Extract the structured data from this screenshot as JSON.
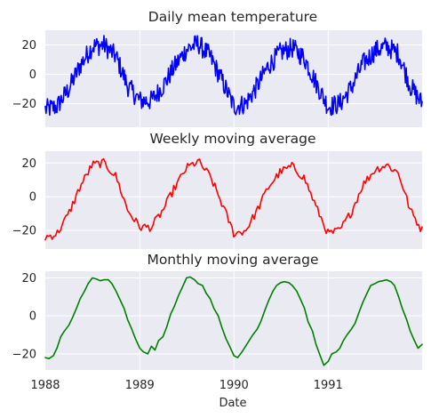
{
  "chart_data": [
    {
      "type": "line",
      "title": "Daily mean temperature",
      "xlabel": "",
      "ylabel": "",
      "xlim": [
        "1988-01-01",
        "1991-12-31"
      ],
      "ylim": [
        -36,
        30
      ],
      "yticks": [
        -20,
        0,
        20
      ],
      "grid": true,
      "series": [
        {
          "color": "#0000ff",
          "description": "daily noisy seasonal cycle",
          "x": [
            "1988-01-01",
            "1988-02-15",
            "1988-04-01",
            "1988-05-15",
            "1988-07-01",
            "1988-08-15",
            "1988-10-01",
            "1988-11-15",
            "1989-01-01",
            "1989-02-15",
            "1989-04-01",
            "1989-05-15",
            "1989-07-01",
            "1989-08-15",
            "1989-10-01",
            "1989-11-15",
            "1990-01-01",
            "1990-02-15",
            "1990-04-01",
            "1990-05-15",
            "1990-07-01",
            "1990-08-15",
            "1990-10-01",
            "1990-11-15",
            "1991-01-01",
            "1991-02-15",
            "1991-04-01",
            "1991-05-15",
            "1991-07-01",
            "1991-08-15",
            "1991-10-01",
            "1991-11-15",
            "1991-12-31"
          ],
          "y": [
            -24,
            -22,
            -10,
            6,
            19,
            20,
            12,
            -8,
            -18,
            -18,
            -8,
            5,
            17,
            21,
            12,
            -4,
            -22,
            -20,
            -8,
            6,
            15,
            18,
            11,
            -6,
            -22,
            -20,
            -9,
            7,
            16,
            19,
            14,
            -8,
            -20
          ]
        }
      ]
    },
    {
      "type": "line",
      "title": "Weekly moving average",
      "xlabel": "",
      "ylabel": "",
      "xlim": [
        "1988-01-01",
        "1991-12-31"
      ],
      "ylim": [
        -31,
        27
      ],
      "yticks": [
        -20,
        0,
        20
      ],
      "grid": true,
      "series": [
        {
          "color": "#ff0000",
          "description": "7-day rolling mean",
          "x": [
            "1988-01-01",
            "1988-02-15",
            "1988-04-01",
            "1988-05-15",
            "1988-07-01",
            "1988-08-15",
            "1988-10-01",
            "1988-11-15",
            "1989-01-01",
            "1989-02-15",
            "1989-04-01",
            "1989-05-15",
            "1989-07-01",
            "1989-08-15",
            "1989-10-01",
            "1989-11-15",
            "1990-01-01",
            "1990-02-15",
            "1990-04-01",
            "1990-05-15",
            "1990-07-01",
            "1990-08-15",
            "1990-10-01",
            "1990-11-15",
            "1991-01-01",
            "1991-02-15",
            "1991-04-01",
            "1991-05-15",
            "1991-07-01",
            "1991-08-15",
            "1991-10-01",
            "1991-11-15",
            "1991-12-31"
          ],
          "y": [
            -24,
            -22,
            -10,
            6,
            19,
            20,
            12,
            -8,
            -18,
            -18,
            -8,
            5,
            17,
            21,
            12,
            -4,
            -22,
            -20,
            -8,
            6,
            15,
            18,
            11,
            -6,
            -22,
            -20,
            -9,
            7,
            16,
            19,
            14,
            -8,
            -20
          ]
        }
      ]
    },
    {
      "type": "line",
      "title": "Monthly moving average",
      "xlabel": "Date",
      "ylabel": "",
      "xlim": [
        "1988-01-01",
        "1991-12-31"
      ],
      "ylim": [
        -28.5,
        23.5
      ],
      "yticks": [
        -20,
        0,
        20
      ],
      "xticks": [
        "1988",
        "1989",
        "1990",
        "1991"
      ],
      "grid": true,
      "series": [
        {
          "color": "#008000",
          "description": "30-day rolling mean",
          "x": [
            "1988-01-01",
            "1988-01-15",
            "1988-02-01",
            "1988-02-15",
            "1988-03-01",
            "1988-03-15",
            "1988-04-01",
            "1988-04-15",
            "1988-05-01",
            "1988-05-15",
            "1988-06-01",
            "1988-06-15",
            "1988-07-01",
            "1988-07-15",
            "1988-08-01",
            "1988-08-15",
            "1988-09-01",
            "1988-09-15",
            "1988-10-01",
            "1988-10-15",
            "1988-11-01",
            "1988-11-15",
            "1988-12-01",
            "1988-12-15",
            "1989-01-01",
            "1989-01-15",
            "1989-02-01",
            "1989-02-15",
            "1989-03-01",
            "1989-03-15",
            "1989-04-01",
            "1989-04-15",
            "1989-05-01",
            "1989-05-15",
            "1989-06-01",
            "1989-06-15",
            "1989-07-01",
            "1989-07-15",
            "1989-08-01",
            "1989-08-15",
            "1989-09-01",
            "1989-09-15",
            "1989-10-01",
            "1989-10-15",
            "1989-11-01",
            "1989-11-15",
            "1989-12-01",
            "1989-12-15",
            "1990-01-01",
            "1990-01-15",
            "1990-02-01",
            "1990-02-15",
            "1990-03-01",
            "1990-03-15",
            "1990-04-01",
            "1990-04-15",
            "1990-05-01",
            "1990-05-15",
            "1990-06-01",
            "1990-06-15",
            "1990-07-01",
            "1990-07-15",
            "1990-08-01",
            "1990-08-15",
            "1990-09-01",
            "1990-09-15",
            "1990-10-01",
            "1990-10-15",
            "1990-11-01",
            "1990-11-15",
            "1990-12-01",
            "1990-12-15",
            "1991-01-01",
            "1991-01-15",
            "1991-02-01",
            "1991-02-15",
            "1991-03-01",
            "1991-03-15",
            "1991-04-01",
            "1991-04-15",
            "1991-05-01",
            "1991-05-15",
            "1991-06-01",
            "1991-06-15",
            "1991-07-01",
            "1991-07-15",
            "1991-08-01",
            "1991-08-15",
            "1991-09-01",
            "1991-09-15",
            "1991-10-01",
            "1991-10-15",
            "1991-11-01",
            "1991-11-15",
            "1991-12-01",
            "1991-12-15",
            "1991-12-31"
          ],
          "y": [
            -22,
            -22.5,
            -21,
            -17,
            -11,
            -8,
            -5,
            -1,
            4,
            9,
            13,
            17,
            20,
            19.5,
            18.5,
            19,
            19,
            17,
            13,
            9,
            4,
            -2,
            -7,
            -12,
            -17,
            -19,
            -20,
            -16,
            -18,
            -13,
            -11,
            -6,
            1,
            5,
            11,
            15,
            20,
            20.5,
            19,
            17,
            16,
            12,
            9,
            4,
            0,
            -6,
            -12,
            -16,
            -21,
            -22,
            -19,
            -16,
            -13,
            -10,
            -7,
            -3,
            3,
            8,
            13,
            16,
            17.5,
            18,
            17.5,
            16,
            13,
            9,
            4,
            -3,
            -8,
            -15,
            -21,
            -26,
            -24,
            -20,
            -19,
            -17,
            -13,
            -10,
            -7,
            -4,
            2,
            7,
            12,
            16,
            17,
            18,
            18.5,
            19,
            18,
            16,
            10,
            4,
            -2,
            -8,
            -13,
            -17,
            -15
          ]
        }
      ]
    }
  ]
}
